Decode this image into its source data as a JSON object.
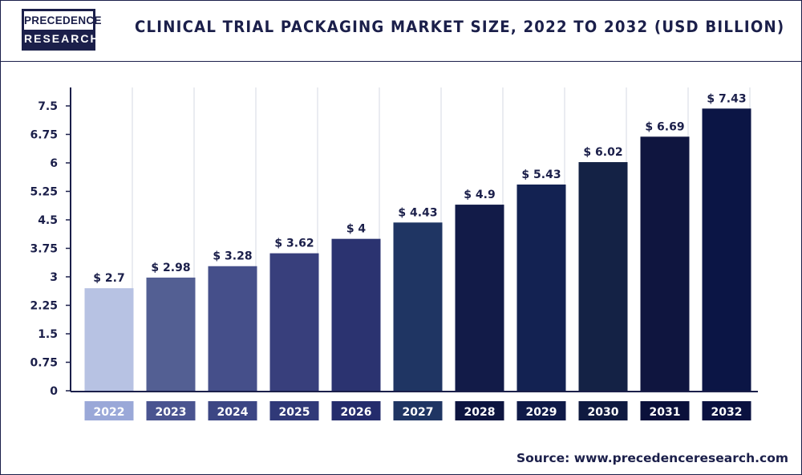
{
  "header": {
    "logo_line1": "PRECEDENCE",
    "logo_line2": "RESEARCH",
    "title": "CLINICAL TRIAL PACKAGING MARKET SIZE, 2022 TO 2032 (USD BILLION)"
  },
  "source": {
    "label": "Source:",
    "url": "www.precedenceresearch.com"
  },
  "chart_data": {
    "type": "bar",
    "title": "CLINICAL TRIAL PACKAGING MARKET SIZE, 2022 TO 2032 (USD BILLION)",
    "xlabel": "",
    "ylabel": "",
    "categories": [
      "2022",
      "2023",
      "2024",
      "2025",
      "2026",
      "2027",
      "2028",
      "2029",
      "2030",
      "2031",
      "2032"
    ],
    "values": [
      2.7,
      2.98,
      3.28,
      3.62,
      4,
      4.43,
      4.9,
      5.43,
      6.02,
      6.69,
      7.43
    ],
    "value_labels": [
      "$ 2.7",
      "$ 2.98",
      "$ 3.28",
      "$ 3.62",
      "$ 4",
      "$ 4.43",
      "$ 4.9",
      "$ 5.43",
      "$ 6.02",
      "$ 6.69",
      "$ 7.43"
    ],
    "y_ticks": [
      "0",
      "0.75",
      "1.5",
      "2.25",
      "3",
      "3.75",
      "4.5",
      "5.25",
      "6",
      "6.75",
      "7.5"
    ],
    "ylim": [
      0,
      7.5
    ],
    "grid": true,
    "legend": "none",
    "bar_colors": [
      "#b7c2e3",
      "#535f93",
      "#454f8a",
      "#383f7c",
      "#2b3370",
      "#1f3563",
      "#121b48",
      "#132252",
      "#142245",
      "#0f153f",
      "#0b1545"
    ],
    "category_box_colors": [
      "#9aa8d8",
      "#4a5490",
      "#3c4684",
      "#303978",
      "#242c6c",
      "#1f3563",
      "#0d1540",
      "#0f1a48",
      "#0f1a40",
      "#0a103a",
      "#0a1140"
    ]
  }
}
